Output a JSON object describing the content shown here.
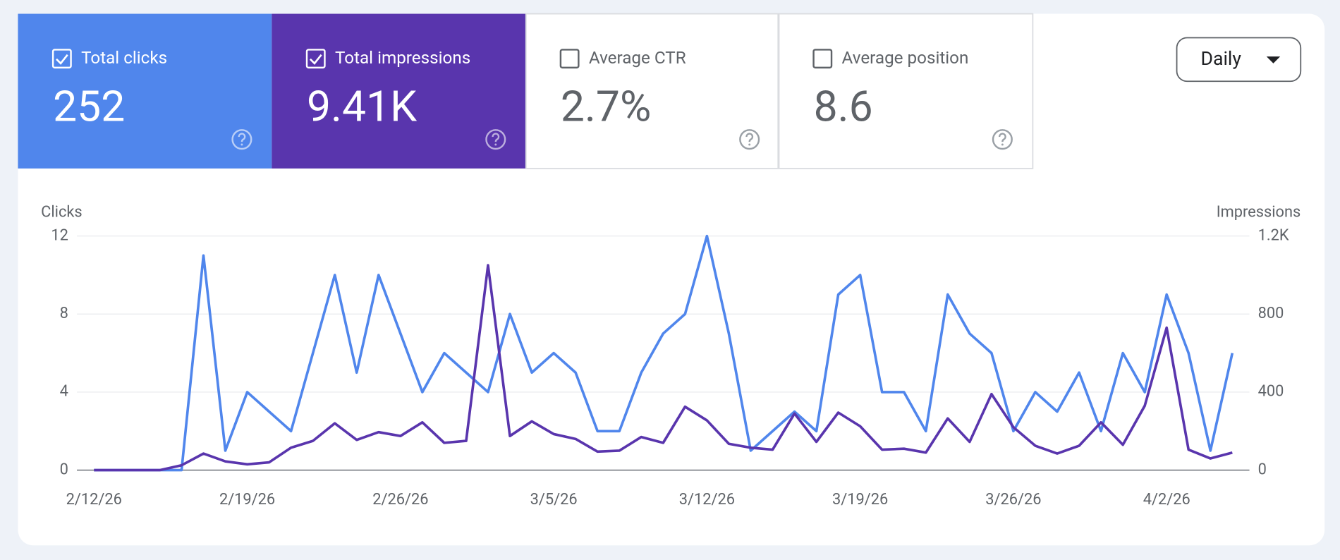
{
  "metrics": [
    {
      "label": "Total clicks",
      "value": "252",
      "checked": true,
      "color": "#5086ec"
    },
    {
      "label": "Total impressions",
      "value": "9.41K",
      "checked": true,
      "color": "#5935ad"
    },
    {
      "label": "Average CTR",
      "value": "2.7%",
      "checked": false,
      "color": "#ffffff"
    },
    {
      "label": "Average position",
      "value": "8.6",
      "checked": false,
      "color": "#ffffff"
    }
  ],
  "period": "Daily",
  "chart_data": {
    "type": "line",
    "y_label": "Clicks",
    "y2_label": "Impressions",
    "categories": [
      "2/12/26",
      null,
      null,
      null,
      null,
      null,
      null,
      "2/19/26",
      null,
      null,
      null,
      null,
      null,
      null,
      "2/26/26",
      null,
      null,
      null,
      null,
      null,
      null,
      "3/5/26",
      null,
      null,
      null,
      null,
      null,
      null,
      "3/12/26",
      null,
      null,
      null,
      null,
      null,
      null,
      "3/19/26",
      null,
      null,
      null,
      null,
      null,
      null,
      "3/26/26",
      null,
      null,
      null,
      null,
      null,
      null,
      "4/2/26",
      null,
      null,
      null
    ],
    "series": [
      {
        "color": "#5086ec",
        "values": [
          0,
          0,
          0,
          0,
          0,
          11,
          1,
          4,
          3,
          2,
          6,
          10,
          5,
          10,
          7,
          4,
          6,
          5,
          4,
          8,
          5,
          6,
          5,
          2,
          2,
          5,
          7,
          8,
          12,
          7,
          1,
          2,
          3,
          2,
          9,
          10,
          4,
          4,
          2,
          9,
          7,
          6,
          2,
          4,
          3,
          5,
          2,
          6,
          4,
          9,
          6,
          1,
          6
        ]
      },
      {
        "color": "#5935ad",
        "axis": "y2",
        "values": [
          0,
          0,
          0,
          0,
          25,
          85,
          45,
          30,
          40,
          115,
          150,
          240,
          155,
          195,
          175,
          245,
          140,
          150,
          1050,
          175,
          250,
          185,
          160,
          95,
          100,
          170,
          140,
          325,
          255,
          135,
          115,
          105,
          290,
          145,
          295,
          225,
          105,
          110,
          90,
          265,
          145,
          390,
          220,
          125,
          85,
          125,
          245,
          130,
          330,
          730,
          105,
          60,
          90
        ]
      }
    ],
    "ylim": [
      0,
      12
    ],
    "yticks": [
      0,
      4,
      8,
      12
    ],
    "y2lim": [
      0,
      1200
    ],
    "y2ticks": [
      0,
      400,
      800,
      {
        "value": 1200,
        "label": "1.2K"
      }
    ],
    "grid": true
  }
}
